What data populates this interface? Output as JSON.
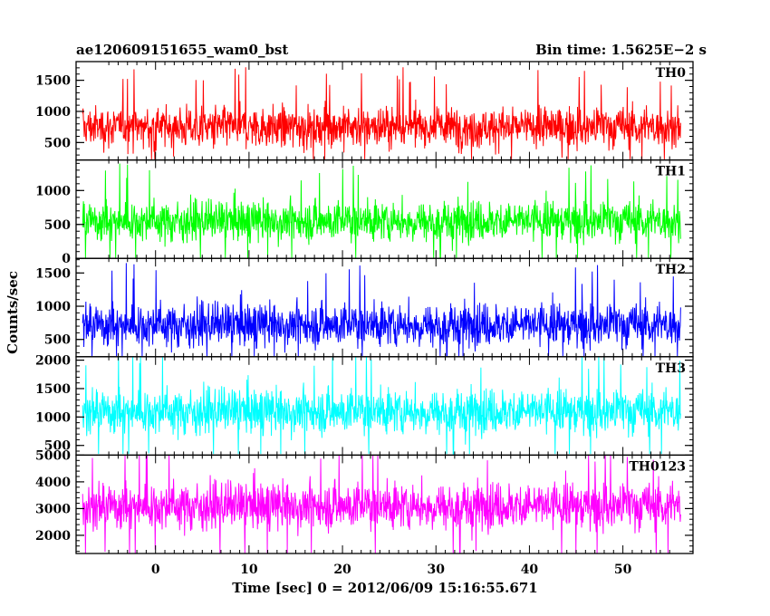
{
  "header": {
    "left_title": "ae120609151655_wam0_bst",
    "right_title": "Bin time: 1.5625E−2 s"
  },
  "chart_data": {
    "type": "line",
    "xlabel": "Time [sec] 0 = 2012/06/09 15:16:55.671",
    "ylabel": "Counts/sec",
    "xlim": [
      -8.5,
      57.5
    ],
    "x_ticks": [
      0,
      10,
      20,
      30,
      40,
      50
    ],
    "x_tick_labels": [
      "0",
      "10",
      "20",
      "30",
      "40",
      "50"
    ],
    "data_x_range": [
      -7.8,
      56.2
    ],
    "bin_time_s": 0.015625,
    "grid": false,
    "legend": "none",
    "panels": [
      {
        "label": "TH0",
        "color": "#ff0000",
        "ylim": [
          220,
          1800
        ],
        "y_ticks": [
          500,
          1000,
          1500
        ],
        "y_tick_labels": [
          "500",
          "1000",
          "1500"
        ],
        "mean": 750,
        "spread": 230,
        "envelope_min": 230,
        "envelope_max": 1800
      },
      {
        "label": "TH1",
        "color": "#00ff00",
        "ylim": [
          0,
          1450
        ],
        "y_ticks": [
          0,
          500,
          1000
        ],
        "y_tick_labels": [
          "0",
          "500",
          "1000"
        ],
        "mean": 550,
        "spread": 210,
        "envelope_min": 10,
        "envelope_max": 1450
      },
      {
        "label": "TH2",
        "color": "#0000ff",
        "ylim": [
          240,
          1720
        ],
        "y_ticks": [
          500,
          1000,
          1500
        ],
        "y_tick_labels": [
          "500",
          "1000",
          "1500"
        ],
        "mean": 720,
        "spread": 230,
        "envelope_min": 250,
        "envelope_max": 1720
      },
      {
        "label": "TH3",
        "color": "#00ffff",
        "ylim": [
          330,
          2060
        ],
        "y_ticks": [
          500,
          1000,
          1500,
          2000
        ],
        "y_tick_labels": [
          "500",
          "1000",
          "1500",
          "2000"
        ],
        "mean": 1100,
        "spread": 280,
        "envelope_min": 350,
        "envelope_max": 2060
      },
      {
        "label": "TH0123",
        "color": "#ff00ff",
        "ylim": [
          1320,
          5000
        ],
        "y_ticks": [
          2000,
          3000,
          4000,
          5000
        ],
        "y_tick_labels": [
          "2000",
          "3000",
          "4000",
          "5000"
        ],
        "mean": 3100,
        "spread": 620,
        "envelope_min": 1330,
        "envelope_max": 5000
      }
    ]
  }
}
